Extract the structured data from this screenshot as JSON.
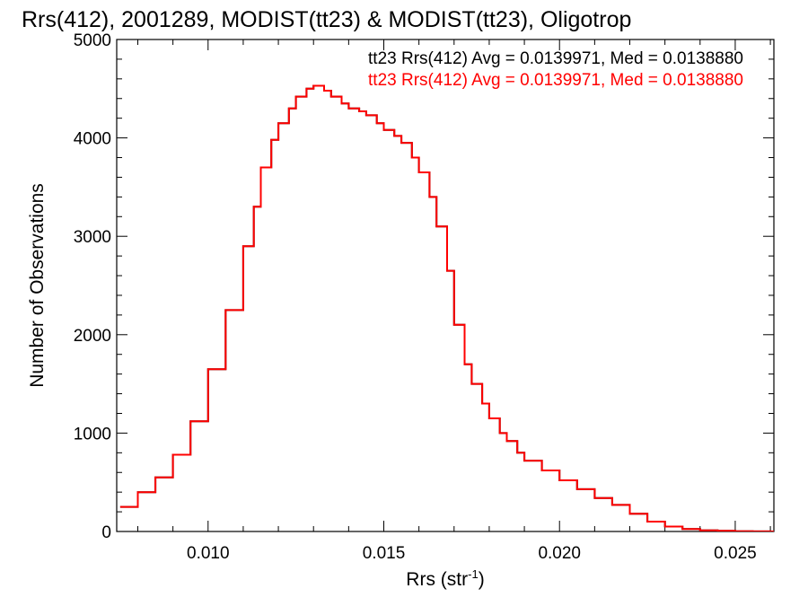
{
  "chart_data": {
    "type": "line",
    "title": "Rrs(412), 2001289, MODIST(tt23) & MODIST(tt23), Oligotrop",
    "xlabel_main": "Rrs (str",
    "xlabel_sup": "-1",
    "xlabel_end": ")",
    "ylabel": "Number of Observations",
    "xlim": [
      0.0074,
      0.0261
    ],
    "ylim": [
      0,
      5000
    ],
    "x_ticks": [
      0.01,
      0.015,
      0.02,
      0.025
    ],
    "x_tick_labels": [
      "0.010",
      "0.015",
      "0.020",
      "0.025"
    ],
    "y_ticks": [
      0,
      1000,
      2000,
      3000,
      4000,
      5000
    ],
    "y_tick_labels": [
      "0",
      "1000",
      "2000",
      "3000",
      "4000",
      "5000"
    ],
    "grid": false,
    "legend_position": "top-right",
    "colors": {
      "series1": "#000000",
      "series2": "#ff0000"
    },
    "legend": [
      "tt23 Rrs(412) Avg = 0.0139971, Med = 0.0138880",
      "tt23 Rrs(412) Avg = 0.0139971, Med = 0.0138880"
    ],
    "series": [
      {
        "name": "tt23 Rrs(412)",
        "x": [
          0.0075,
          0.008,
          0.0085,
          0.009,
          0.0095,
          0.01,
          0.0105,
          0.011,
          0.0113,
          0.0115,
          0.0118,
          0.012,
          0.0123,
          0.0125,
          0.0128,
          0.013,
          0.0133,
          0.0135,
          0.0138,
          0.014,
          0.0143,
          0.0145,
          0.0148,
          0.015,
          0.0153,
          0.0155,
          0.0158,
          0.016,
          0.0163,
          0.0165,
          0.0168,
          0.017,
          0.0173,
          0.0175,
          0.0178,
          0.018,
          0.0183,
          0.0185,
          0.0188,
          0.019,
          0.0195,
          0.02,
          0.0205,
          0.021,
          0.0215,
          0.022,
          0.0225,
          0.023,
          0.0235,
          0.024,
          0.0245,
          0.025,
          0.0255,
          0.026
        ],
        "y": [
          250,
          400,
          550,
          780,
          1120,
          1650,
          2250,
          2900,
          3300,
          3700,
          3980,
          4150,
          4300,
          4420,
          4500,
          4530,
          4480,
          4420,
          4350,
          4300,
          4270,
          4230,
          4150,
          4080,
          4020,
          3950,
          3800,
          3650,
          3400,
          3100,
          2650,
          2100,
          1700,
          1500,
          1300,
          1150,
          1000,
          920,
          800,
          720,
          620,
          520,
          430,
          340,
          270,
          180,
          100,
          50,
          25,
          12,
          6,
          3,
          1,
          0
        ]
      },
      {
        "name": "tt23 Rrs(412)",
        "x": [
          0.0075,
          0.008,
          0.0085,
          0.009,
          0.0095,
          0.01,
          0.0105,
          0.011,
          0.0113,
          0.0115,
          0.0118,
          0.012,
          0.0123,
          0.0125,
          0.0128,
          0.013,
          0.0133,
          0.0135,
          0.0138,
          0.014,
          0.0143,
          0.0145,
          0.0148,
          0.015,
          0.0153,
          0.0155,
          0.0158,
          0.016,
          0.0163,
          0.0165,
          0.0168,
          0.017,
          0.0173,
          0.0175,
          0.0178,
          0.018,
          0.0183,
          0.0185,
          0.0188,
          0.019,
          0.0195,
          0.02,
          0.0205,
          0.021,
          0.0215,
          0.022,
          0.0225,
          0.023,
          0.0235,
          0.024,
          0.0245,
          0.025,
          0.0255,
          0.026
        ],
        "y": [
          250,
          400,
          550,
          780,
          1120,
          1650,
          2250,
          2900,
          3300,
          3700,
          3980,
          4150,
          4300,
          4420,
          4500,
          4530,
          4480,
          4420,
          4350,
          4300,
          4270,
          4230,
          4150,
          4080,
          4020,
          3950,
          3800,
          3650,
          3400,
          3100,
          2650,
          2100,
          1700,
          1500,
          1300,
          1150,
          1000,
          920,
          800,
          720,
          620,
          520,
          430,
          340,
          270,
          180,
          100,
          50,
          25,
          12,
          6,
          3,
          1,
          0
        ]
      }
    ]
  }
}
